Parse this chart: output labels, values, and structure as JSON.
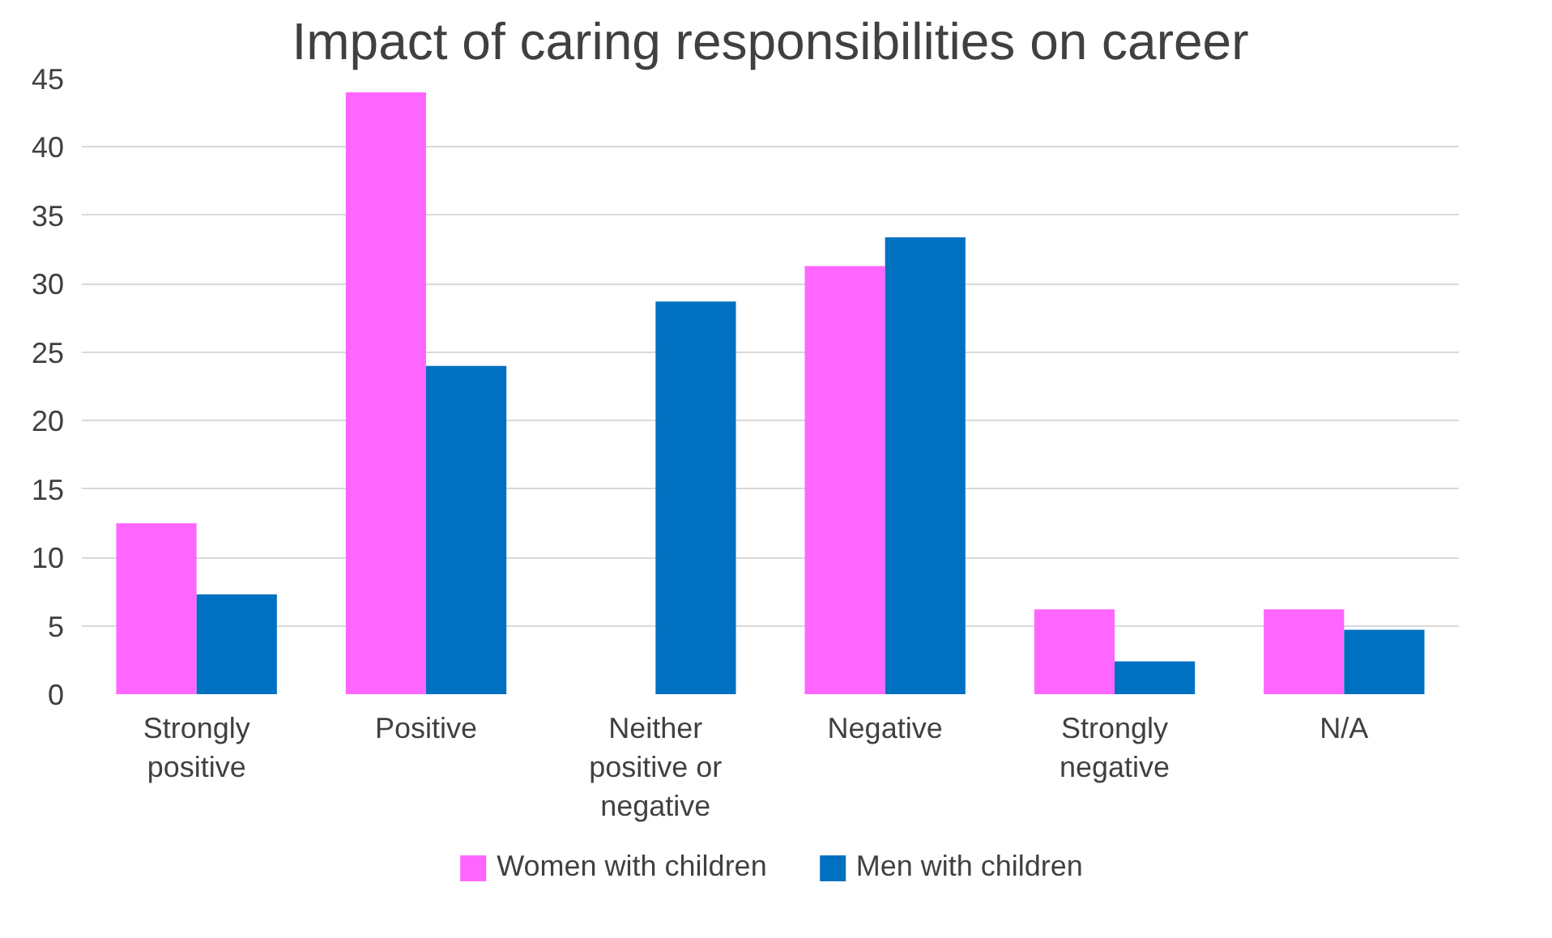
{
  "chart_data": {
    "type": "bar",
    "title": "Impact of caring responsibilities on career",
    "categories": [
      "Strongly positive",
      "Positive",
      "Neither positive or negative",
      "Negative",
      "Strongly negative",
      "N/A"
    ],
    "series": [
      {
        "name": "Women with children",
        "color": "#ff66ff",
        "values": [
          12.5,
          44,
          0,
          31.3,
          6.2,
          6.2
        ]
      },
      {
        "name": "Men with children",
        "color": "#0070c0",
        "values": [
          7.3,
          24,
          28.7,
          33.4,
          2.4,
          4.7
        ]
      }
    ],
    "ylim": [
      0,
      45
    ],
    "yticks": [
      0,
      5,
      10,
      15,
      20,
      25,
      30,
      35,
      40,
      45
    ],
    "grid": "y",
    "legend": "bottom"
  }
}
